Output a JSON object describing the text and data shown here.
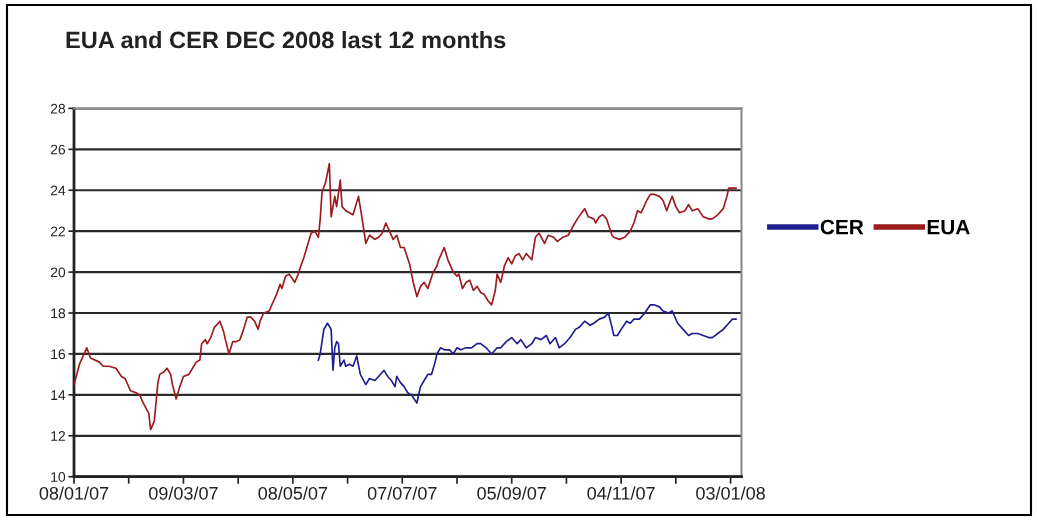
{
  "chart_data": {
    "type": "line",
    "title": "EUA and CER DEC 2008 last 12 months",
    "xlim": [
      "2007-01-08",
      "2008-01-09"
    ],
    "xticks": [
      {
        "value": "2007-01-08",
        "label": "08/01/07"
      },
      {
        "value": "2007-02-07",
        "label": null
      },
      {
        "value": "2007-03-09",
        "label": "09/03/07"
      },
      {
        "value": "2007-04-08",
        "label": null
      },
      {
        "value": "2007-05-08",
        "label": "08/05/07"
      },
      {
        "value": "2007-06-07",
        "label": null
      },
      {
        "value": "2007-07-07",
        "label": "07/07/07"
      },
      {
        "value": "2007-08-06",
        "label": null
      },
      {
        "value": "2007-09-05",
        "label": "05/09/07"
      },
      {
        "value": "2007-10-05",
        "label": null
      },
      {
        "value": "2007-11-04",
        "label": "04/11/07"
      },
      {
        "value": "2007-12-04",
        "label": null
      },
      {
        "value": "2008-01-03",
        "label": "03/01/08"
      }
    ],
    "ylim": [
      10,
      28
    ],
    "yticks": [
      10,
      12,
      14,
      16,
      18,
      20,
      22,
      24,
      26,
      28
    ],
    "grid": "y",
    "legend": "right",
    "line_style": "solid",
    "series": [
      {
        "name": "CER",
        "color": "#1f1f8f",
        "x": [
          "2007-05-22",
          "2007-05-23",
          "2007-05-25",
          "2007-05-27",
          "2007-05-29",
          "2007-05-30",
          "2007-05-31",
          "2007-06-01",
          "2007-06-02",
          "2007-06-03",
          "2007-06-05",
          "2007-06-06",
          "2007-06-08",
          "2007-06-10",
          "2007-06-12",
          "2007-06-14",
          "2007-06-17",
          "2007-06-19",
          "2007-06-22",
          "2007-06-24",
          "2007-06-27",
          "2007-06-29",
          "2007-07-01",
          "2007-07-03",
          "2007-07-04",
          "2007-07-06",
          "2007-07-08",
          "2007-07-10",
          "2007-07-12",
          "2007-07-15",
          "2007-07-17",
          "2007-07-19",
          "2007-07-21",
          "2007-07-23",
          "2007-07-25",
          "2007-07-26",
          "2007-07-28",
          "2007-07-30",
          "2007-08-02",
          "2007-08-04",
          "2007-08-06",
          "2007-08-08",
          "2007-08-11",
          "2007-08-14",
          "2007-08-17",
          "2007-08-19",
          "2007-08-22",
          "2007-08-25",
          "2007-08-28",
          "2007-08-30",
          "2007-09-02",
          "2007-09-05",
          "2007-09-08",
          "2007-09-10",
          "2007-09-13",
          "2007-09-16",
          "2007-09-18",
          "2007-09-21",
          "2007-09-24",
          "2007-09-26",
          "2007-09-29",
          "2007-10-01",
          "2007-10-04",
          "2007-10-07",
          "2007-10-10",
          "2007-10-12",
          "2007-10-15",
          "2007-10-18",
          "2007-10-20",
          "2007-10-23",
          "2007-10-26",
          "2007-10-28",
          "2007-10-30",
          "2007-10-31",
          "2007-11-02",
          "2007-11-04",
          "2007-11-07",
          "2007-11-09",
          "2007-11-11",
          "2007-11-14",
          "2007-11-17",
          "2007-11-20",
          "2007-11-22",
          "2007-11-25",
          "2007-11-27",
          "2007-11-30",
          "2007-12-02",
          "2007-12-05",
          "2007-12-08",
          "2007-12-11",
          "2007-12-13",
          "2007-12-16",
          "2007-12-19",
          "2007-12-22",
          "2007-12-24",
          "2007-12-27",
          "2007-12-30",
          "2008-01-02",
          "2008-01-04",
          "2008-01-06"
        ],
        "values": [
          15.7,
          16.0,
          17.2,
          17.5,
          17.2,
          15.2,
          16.3,
          16.6,
          16.5,
          15.4,
          15.7,
          15.4,
          15.5,
          15.4,
          15.9,
          15.0,
          14.5,
          14.8,
          14.7,
          14.9,
          15.2,
          14.9,
          14.7,
          14.4,
          14.9,
          14.6,
          14.4,
          14.1,
          14.0,
          13.6,
          14.4,
          14.7,
          15.0,
          15.0,
          15.6,
          16.0,
          16.3,
          16.2,
          16.2,
          16.0,
          16.3,
          16.2,
          16.3,
          16.3,
          16.5,
          16.5,
          16.3,
          16.0,
          16.3,
          16.3,
          16.6,
          16.8,
          16.5,
          16.7,
          16.3,
          16.5,
          16.8,
          16.7,
          16.9,
          16.5,
          16.8,
          16.3,
          16.5,
          16.8,
          17.2,
          17.3,
          17.6,
          17.4,
          17.5,
          17.7,
          17.8,
          18.0,
          17.3,
          16.9,
          16.9,
          17.2,
          17.6,
          17.5,
          17.7,
          17.7,
          18.0,
          18.4,
          18.4,
          18.3,
          18.1,
          18.0,
          18.1,
          17.5,
          17.2,
          16.9,
          17.0,
          17.0,
          16.9,
          16.8,
          16.8,
          17.0,
          17.2,
          17.5,
          17.7,
          17.7
        ]
      },
      {
        "name": "EUA",
        "color": "#9b1b1f",
        "x": [
          "2007-01-08",
          "2007-01-11",
          "2007-01-15",
          "2007-01-17",
          "2007-01-22",
          "2007-01-24",
          "2007-01-27",
          "2007-01-31",
          "2007-02-03",
          "2007-02-05",
          "2007-02-08",
          "2007-02-11",
          "2007-02-13",
          "2007-02-15",
          "2007-02-18",
          "2007-02-19",
          "2007-02-21",
          "2007-02-23",
          "2007-02-24",
          "2007-02-26",
          "2007-02-28",
          "2007-03-02",
          "2007-03-03",
          "2007-03-05",
          "2007-03-07",
          "2007-03-09",
          "2007-03-12",
          "2007-03-14",
          "2007-03-16",
          "2007-03-18",
          "2007-03-19",
          "2007-03-21",
          "2007-03-22",
          "2007-03-24",
          "2007-03-26",
          "2007-03-29",
          "2007-03-31",
          "2007-04-01",
          "2007-04-03",
          "2007-04-05",
          "2007-04-07",
          "2007-04-09",
          "2007-04-11",
          "2007-04-13",
          "2007-04-15",
          "2007-04-17",
          "2007-04-19",
          "2007-04-20",
          "2007-04-22",
          "2007-04-25",
          "2007-04-27",
          "2007-04-29",
          "2007-05-01",
          "2007-05-02",
          "2007-05-04",
          "2007-05-06",
          "2007-05-09",
          "2007-05-11",
          "2007-05-12",
          "2007-05-14",
          "2007-05-16",
          "2007-05-18",
          "2007-05-20",
          "2007-05-22",
          "2007-05-23",
          "2007-05-24",
          "2007-05-26",
          "2007-05-28",
          "2007-05-29",
          "2007-05-31",
          "2007-06-01",
          "2007-06-03",
          "2007-06-04",
          "2007-06-06",
          "2007-06-08",
          "2007-06-10",
          "2007-06-13",
          "2007-06-15",
          "2007-06-17",
          "2007-06-19",
          "2007-06-22",
          "2007-06-24",
          "2007-06-26",
          "2007-06-28",
          "2007-06-30",
          "2007-07-02",
          "2007-07-04",
          "2007-07-06",
          "2007-07-08",
          "2007-07-11",
          "2007-07-13",
          "2007-07-15",
          "2007-07-17",
          "2007-07-19",
          "2007-07-21",
          "2007-07-24",
          "2007-07-26",
          "2007-07-27",
          "2007-07-30",
          "2007-08-01",
          "2007-08-04",
          "2007-08-06",
          "2007-08-07",
          "2007-08-09",
          "2007-08-11",
          "2007-08-13",
          "2007-08-15",
          "2007-08-17",
          "2007-08-19",
          "2007-08-21",
          "2007-08-23",
          "2007-08-25",
          "2007-08-27",
          "2007-08-28",
          "2007-08-30",
          "2007-09-01",
          "2007-09-03",
          "2007-09-05",
          "2007-09-07",
          "2007-09-09",
          "2007-09-11",
          "2007-09-13",
          "2007-09-16",
          "2007-09-18",
          "2007-09-20",
          "2007-09-23",
          "2007-09-25",
          "2007-09-28",
          "2007-09-30",
          "2007-10-03",
          "2007-10-06",
          "2007-10-09",
          "2007-10-11",
          "2007-10-15",
          "2007-10-17",
          "2007-10-20",
          "2007-10-21",
          "2007-10-23",
          "2007-10-25",
          "2007-10-27",
          "2007-10-30",
          "2007-10-31",
          "2007-11-03",
          "2007-11-06",
          "2007-11-09",
          "2007-11-11",
          "2007-11-13",
          "2007-11-15",
          "2007-11-18",
          "2007-11-20",
          "2007-11-22",
          "2007-11-25",
          "2007-11-27",
          "2007-11-29",
          "2007-12-01",
          "2007-12-02",
          "2007-12-04",
          "2007-12-06",
          "2007-12-09",
          "2007-12-11",
          "2007-12-13",
          "2007-12-16",
          "2007-12-19",
          "2007-12-22",
          "2007-12-24",
          "2007-12-27",
          "2007-12-30",
          "2008-01-01",
          "2008-01-02",
          "2008-01-05",
          "2008-01-06"
        ],
        "values": [
          14.5,
          15.5,
          16.3,
          15.8,
          15.6,
          15.4,
          15.4,
          15.3,
          14.9,
          14.8,
          14.2,
          14.1,
          14.0,
          13.6,
          13.1,
          12.3,
          12.7,
          14.6,
          15.0,
          15.1,
          15.3,
          15.0,
          14.5,
          13.8,
          14.4,
          14.9,
          15.0,
          15.3,
          15.6,
          15.7,
          16.5,
          16.7,
          16.5,
          16.8,
          17.3,
          17.6,
          17.1,
          16.7,
          16.0,
          16.6,
          16.6,
          16.7,
          17.2,
          17.8,
          17.8,
          17.6,
          17.2,
          17.6,
          18.0,
          18.1,
          18.5,
          18.9,
          19.4,
          19.2,
          19.8,
          19.9,
          19.5,
          19.9,
          20.2,
          20.7,
          21.3,
          21.9,
          22.0,
          21.7,
          22.6,
          23.9,
          24.4,
          25.3,
          22.7,
          23.7,
          23.2,
          24.5,
          23.2,
          23.0,
          22.9,
          22.8,
          23.7,
          22.6,
          21.4,
          21.8,
          21.6,
          21.7,
          21.9,
          22.4,
          22.0,
          21.6,
          21.8,
          21.2,
          21.2,
          20.4,
          19.5,
          18.8,
          19.3,
          19.5,
          19.2,
          20.0,
          20.3,
          20.6,
          21.2,
          20.6,
          20.0,
          19.8,
          19.9,
          19.2,
          19.5,
          19.6,
          19.1,
          19.3,
          19.0,
          18.9,
          18.6,
          18.4,
          19.1,
          19.9,
          19.5,
          20.3,
          20.7,
          20.4,
          20.8,
          20.9,
          20.6,
          20.9,
          20.6,
          21.7,
          21.9,
          21.4,
          21.8,
          21.7,
          21.5,
          21.7,
          21.8,
          22.3,
          22.6,
          23.1,
          22.7,
          22.6,
          22.4,
          22.7,
          22.8,
          22.6,
          21.8,
          21.7,
          21.6,
          21.7,
          22.0,
          22.4,
          23.0,
          22.9,
          23.5,
          23.8,
          23.8,
          23.7,
          23.5,
          23.0,
          23.5,
          23.7,
          23.2,
          22.9,
          23.0,
          23.3,
          23.0,
          23.1,
          22.7,
          22.6,
          22.6,
          22.8,
          23.1,
          23.7,
          24.1,
          24.1,
          24.1
        ]
      }
    ]
  }
}
